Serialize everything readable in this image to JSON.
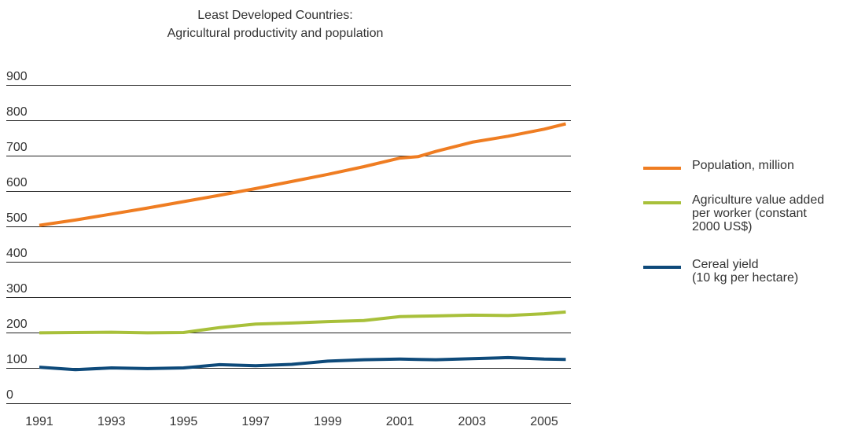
{
  "chart_data": {
    "type": "line",
    "title": [
      "Least Developed Countries:",
      "Agricultural productivity and population"
    ],
    "xlabel": "",
    "ylabel": "",
    "ylim": [
      0,
      900
    ],
    "yticks": [
      "0",
      "100",
      "200",
      "300",
      "400",
      "500",
      "600",
      "700",
      "800",
      "900"
    ],
    "xlim": [
      1990.7,
      2006.2
    ],
    "xticks": [
      "1991",
      "1993",
      "1995",
      "1997",
      "1999",
      "2001",
      "2003",
      "2005"
    ],
    "grid": "horizontal",
    "legend_position": "right",
    "x": [
      1991,
      1992,
      1993,
      1994,
      1995,
      1996,
      1997,
      1998,
      1999,
      2000,
      2001,
      2001.5,
      2002,
      2003,
      2004,
      2005,
      2006
    ],
    "series": [
      {
        "name": "Population, million",
        "color": "#ef7d22",
        "values": [
          503,
          518,
          535,
          552,
          570,
          588,
          607,
          627,
          647,
          669,
          693,
          697,
          712,
          738,
          755,
          775,
          790
        ]
      },
      {
        "name": "Agriculture value added per worker (constant 2000 US$)",
        "color": "#a8c03a",
        "values": [
          199,
          200,
          201,
          199,
          200,
          214,
          224,
          227,
          231,
          234,
          245,
          246,
          247,
          249,
          248,
          253,
          258
        ]
      },
      {
        "name": "Cereal yield (10 kg per hectare)",
        "color": "#0e4a7a",
        "values": [
          102,
          95,
          100,
          98,
          100,
          109,
          106,
          110,
          119,
          123,
          125,
          124,
          123,
          126,
          129,
          125,
          124
        ]
      }
    ],
    "legend": [
      {
        "lines": [
          "Population, million"
        ],
        "color": "#ef7d22"
      },
      {
        "lines": [
          "Agriculture value added",
          "per worker (constant",
          "2000 US$)"
        ],
        "color": "#a8c03a"
      },
      {
        "lines": [
          "Cereal yield",
          "(10 kg per hectare)"
        ],
        "color": "#0e4a7a"
      }
    ]
  }
}
